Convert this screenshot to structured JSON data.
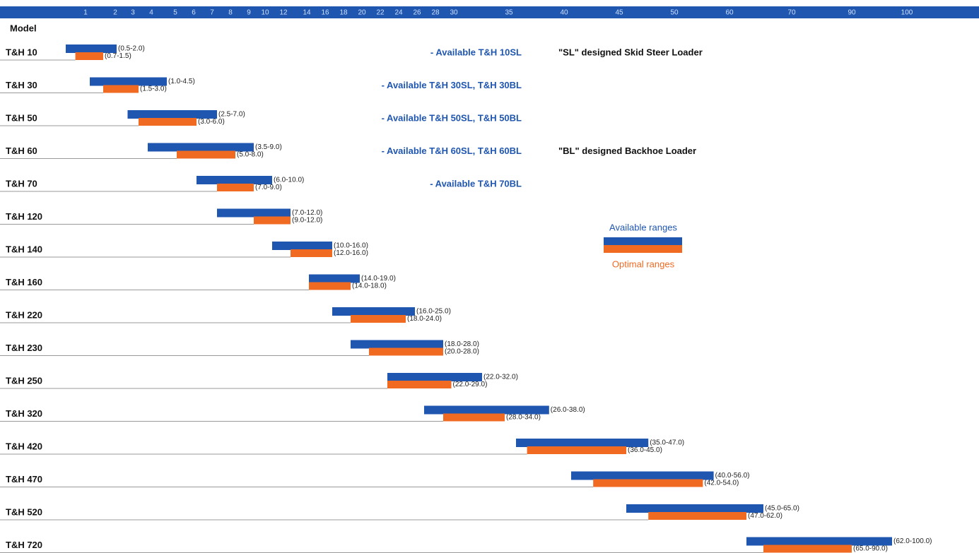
{
  "chart_data": {
    "type": "range-bar",
    "header": "Model",
    "categories": [
      "T&H 10",
      "T&H 30",
      "T&H 50",
      "T&H 60",
      "T&H 70",
      "T&H 120",
      "T&H 140",
      "T&H 160",
      "T&H 220",
      "T&H 230",
      "T&H 250",
      "T&H 320",
      "T&H 420",
      "T&H 470",
      "T&H 520",
      "T&H 720"
    ],
    "xlim": [
      0.5,
      100
    ],
    "xticks": [
      1,
      2,
      3,
      4,
      5,
      6,
      7,
      8,
      9,
      10,
      12,
      14,
      16,
      18,
      20,
      22,
      24,
      26,
      28,
      30,
      35,
      40,
      45,
      50,
      60,
      70,
      90,
      100
    ],
    "series": [
      {
        "name": "Available ranges",
        "color": "#1f56b0",
        "values": [
          [
            0.5,
            2
          ],
          [
            1,
            4.5
          ],
          [
            2.5,
            7
          ],
          [
            3.5,
            9
          ],
          [
            6,
            10
          ],
          [
            7,
            12
          ],
          [
            10,
            16
          ],
          [
            14,
            19
          ],
          [
            16,
            25
          ],
          [
            18,
            28
          ],
          [
            22,
            32
          ],
          [
            26,
            38
          ],
          [
            35,
            47
          ],
          [
            40,
            56
          ],
          [
            45,
            65
          ],
          [
            62,
            100
          ]
        ],
        "value_labels": [
          "(0.5-2.0)",
          "(1.0-4.5)",
          "(2.5-7.0)",
          "(3.5-9.0)",
          "(6.0-10.0)",
          "(7.0-12.0)",
          "(10.0-16.0)",
          "(14.0-19.0)",
          "(16.0-25.0)",
          "(18.0-28.0)",
          "(22.0-32.0)",
          "(26.0-38.0)",
          "(35.0-47.0)",
          "(40.0-56.0)",
          "(45.0-65.0)",
          "(62.0-100.0)"
        ]
      },
      {
        "name": "Optimal ranges",
        "color": "#f06a22",
        "values": [
          [
            0.7,
            1.5
          ],
          [
            1.5,
            3
          ],
          [
            3,
            6
          ],
          [
            5,
            8
          ],
          [
            7,
            9
          ],
          [
            9,
            12
          ],
          [
            12,
            16
          ],
          [
            14,
            18
          ],
          [
            18,
            24
          ],
          [
            20,
            28
          ],
          [
            22,
            29
          ],
          [
            28,
            34
          ],
          [
            36,
            45
          ],
          [
            42,
            54
          ],
          [
            47,
            62
          ],
          [
            65,
            90
          ]
        ],
        "value_labels": [
          "(0.7-1.5)",
          "(1.5-3.0)",
          "(3.0-6.0)",
          "(5.0-8.0)",
          "(7.0-9.0)",
          "(9.0-12.0)",
          "(12.0-16.0)",
          "(14.0-18.0)",
          "(18.0-24.0)",
          "(20.0-28.0)",
          "(22.0-29.0)",
          "(28.0-34.0)",
          "(36.0-45.0)",
          "(42.0-54.0)",
          "(47.0-62.0)",
          "(65.0-90.0)"
        ]
      }
    ],
    "annotations": [
      "- Available T&H 10SL",
      "- Available T&H 30SL, T&H 30BL",
      "- Available T&H 50SL, T&H 50BL",
      "- Available T&H 60SL, T&H 60BL",
      "- Available T&H 70BL"
    ],
    "notes": [
      "\"SL\" designed Skid Steer Loader",
      "\"BL\" designed Backhoe Loader"
    ]
  }
}
